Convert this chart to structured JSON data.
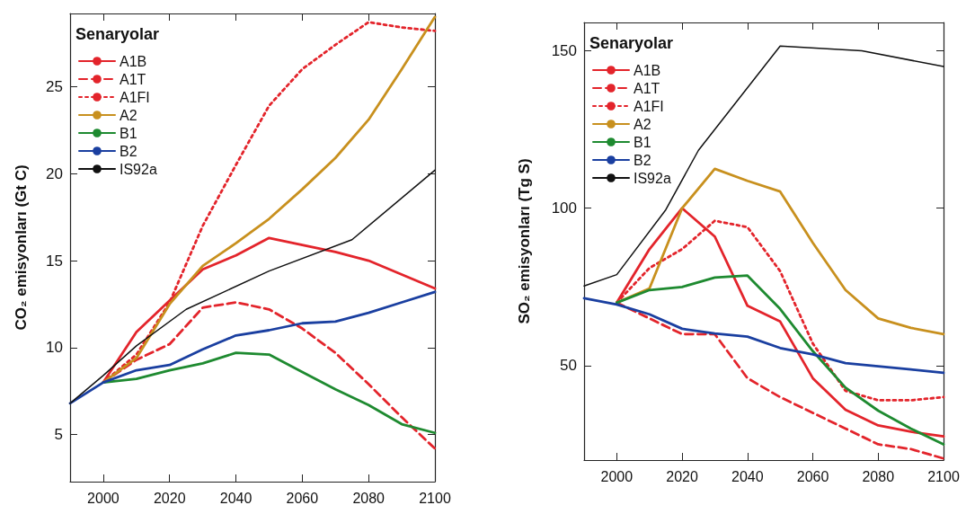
{
  "chart_data": [
    {
      "type": "line",
      "ylabel": "CO₂ emisyonları (Gt C)",
      "legend_title": "Senaryolar",
      "xlim": [
        1990,
        2100
      ],
      "xticks": [
        2000,
        2020,
        2040,
        2060,
        2080,
        2100
      ],
      "ylim": [
        2.3,
        29.2
      ],
      "yticks": [
        5,
        10,
        15,
        20,
        25
      ],
      "grid": false,
      "legend": "top left",
      "marker": "none",
      "series": [
        {
          "name": "A1B",
          "color": "#e3242b",
          "line_style": "solid",
          "x": [
            2000,
            2010,
            2020,
            2030,
            2040,
            2050,
            2060,
            2070,
            2080,
            2090,
            2100
          ],
          "values": [
            8.0,
            10.9,
            12.7,
            14.5,
            15.3,
            16.3,
            15.9,
            15.5,
            15.0,
            14.2,
            13.4
          ]
        },
        {
          "name": "A1T",
          "color": "#e3242b",
          "line_style": "dashed",
          "x": [
            2000,
            2010,
            2020,
            2030,
            2040,
            2050,
            2060,
            2070,
            2080,
            2090,
            2100
          ],
          "values": [
            8.0,
            9.3,
            10.2,
            12.3,
            12.6,
            12.2,
            11.1,
            9.7,
            7.9,
            6.0,
            4.2
          ]
        },
        {
          "name": "A1FI",
          "color": "#e3242b",
          "line_style": "dotted",
          "x": [
            2000,
            2010,
            2020,
            2030,
            2040,
            2050,
            2060,
            2070,
            2080,
            2090,
            2100
          ],
          "values": [
            8.0,
            9.6,
            12.6,
            17.0,
            20.5,
            23.9,
            26.0,
            27.4,
            28.7,
            28.4,
            28.2
          ]
        },
        {
          "name": "A2",
          "color": "#c8901e",
          "line_style": "solid",
          "x": [
            2000,
            2010,
            2020,
            2030,
            2040,
            2050,
            2060,
            2070,
            2080,
            2090,
            2100
          ],
          "values": [
            8.0,
            9.4,
            12.5,
            14.7,
            16.0,
            17.4,
            19.1,
            20.9,
            23.1,
            26.0,
            29.0
          ]
        },
        {
          "name": "B1",
          "color": "#1e8a30",
          "line_style": "solid",
          "x": [
            2000,
            2010,
            2020,
            2030,
            2040,
            2050,
            2060,
            2070,
            2080,
            2090,
            2100
          ],
          "values": [
            8.0,
            8.2,
            8.7,
            9.1,
            9.7,
            9.6,
            8.6,
            7.6,
            6.7,
            5.6,
            5.1
          ]
        },
        {
          "name": "B2",
          "color": "#1a3fa0",
          "line_style": "solid",
          "x": [
            1990,
            2000,
            2010,
            2020,
            2030,
            2040,
            2050,
            2060,
            2070,
            2080,
            2090,
            2100
          ],
          "values": [
            6.8,
            8.0,
            8.7,
            9.0,
            9.9,
            10.7,
            11.0,
            11.4,
            11.5,
            12.0,
            12.6,
            13.2
          ]
        },
        {
          "name": "IS92a",
          "color": "#111111",
          "line_style": "solid",
          "x": [
            1990,
            2000,
            2010,
            2025,
            2050,
            2075,
            2100
          ],
          "values": [
            6.8,
            8.4,
            10.1,
            12.2,
            14.4,
            16.2,
            20.2
          ]
        }
      ]
    },
    {
      "type": "line",
      "ylabel": "SO₂ emisyonları (Tg S)",
      "legend_title": "Senaryolar",
      "xlim": [
        1990,
        2100
      ],
      "xticks": [
        2000,
        2020,
        2040,
        2060,
        2080,
        2100
      ],
      "ylim": [
        20,
        159
      ],
      "yticks": [
        50,
        100,
        150
      ],
      "grid": false,
      "legend": "top left",
      "marker": "none",
      "series": [
        {
          "name": "A1B",
          "color": "#e3242b",
          "line_style": "solid",
          "x": [
            2000,
            2010,
            2020,
            2030,
            2040,
            2050,
            2060,
            2070,
            2080,
            2090,
            2100
          ],
          "values": [
            70,
            87,
            100,
            91,
            69,
            64,
            46,
            36,
            31,
            29,
            27.5
          ]
        },
        {
          "name": "A1T",
          "color": "#e3242b",
          "line_style": "dashed",
          "x": [
            2000,
            2010,
            2020,
            2030,
            2040,
            2050,
            2060,
            2070,
            2080,
            2090,
            2100
          ],
          "values": [
            70,
            65,
            60,
            60,
            46,
            40,
            35,
            30,
            25,
            23.5,
            20.5
          ]
        },
        {
          "name": "A1FI",
          "color": "#e3242b",
          "line_style": "dotted",
          "x": [
            2000,
            2010,
            2020,
            2030,
            2040,
            2050,
            2060,
            2070,
            2080,
            2090,
            2100
          ],
          "values": [
            70,
            81,
            87,
            96,
            94,
            80,
            57,
            42,
            39,
            39,
            40
          ]
        },
        {
          "name": "A2",
          "color": "#c8901e",
          "line_style": "solid",
          "x": [
            2000,
            2010,
            2020,
            2030,
            2040,
            2050,
            2060,
            2070,
            2080,
            2090,
            2100
          ],
          "values": [
            70,
            74.5,
            100,
            112.5,
            108.7,
            105.3,
            89,
            74,
            65,
            62,
            60
          ]
        },
        {
          "name": "B1",
          "color": "#1e8a30",
          "line_style": "solid",
          "x": [
            2000,
            2010,
            2020,
            2030,
            2040,
            2050,
            2060,
            2070,
            2080,
            2090,
            2100
          ],
          "values": [
            70,
            74,
            75,
            78,
            78.6,
            68,
            54.6,
            43,
            35.7,
            30,
            25
          ]
        },
        {
          "name": "B2",
          "color": "#1a3fa0",
          "line_style": "solid",
          "x": [
            1990,
            2000,
            2010,
            2020,
            2030,
            2040,
            2050,
            2060,
            2070,
            2080,
            2090,
            2100
          ],
          "values": [
            71.4,
            69.4,
            66.3,
            61.7,
            60.2,
            59.2,
            55.6,
            53.6,
            50.8,
            49.8,
            48.8,
            47.7
          ]
        },
        {
          "name": "IS92a",
          "color": "#111111",
          "line_style": "solid",
          "x": [
            1990,
            2000,
            2015,
            2025,
            2050,
            2075,
            2100
          ],
          "values": [
            75.3,
            78.9,
            99.5,
            118.4,
            151.5,
            150,
            145
          ]
        }
      ]
    }
  ]
}
